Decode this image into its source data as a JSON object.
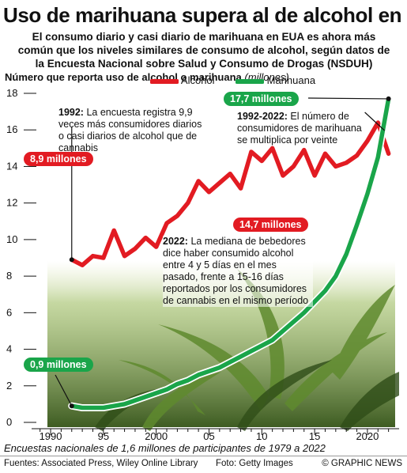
{
  "title": "Uso de marihuana supera al de alcohol en EUA",
  "subtitle": "El consumo diario y casi diario de marihuana en EUA es ahora más común que los niveles similares de consumo de alcohol, según datos de la Encuesta Nacional sobre Salud y Consumo de Drogas (NSDUH)",
  "measure_label": "Número  que reporta uso de alcohol o marihuana",
  "measure_unit": "(millones)",
  "legend": {
    "alcohol": "Alcohol",
    "cannabis": "Marihuana"
  },
  "colors": {
    "alcohol": "#e21b22",
    "cannabis": "#1aa54a",
    "photo_dark": "#3e5c22",
    "photo_light": "#9fbe63"
  },
  "callouts": {
    "alcohol_1992": "8,9 millones",
    "cannabis_1992": "0,9 millones",
    "cannabis_2022": "17,7 millones",
    "alcohol_2022": "14,7 millones"
  },
  "notes": {
    "n1992_year": "1992:",
    "n1992_text": " La encuesta registra 9,9 veces más consumidores diarios o casi diarios de alcohol que de cannabis",
    "n19922022_year": "1992-2022:",
    "n19922022_text": " El número de consumidores de marihuana se multiplica por veinte",
    "n2022_year": "2022:",
    "n2022_text": " La mediana de bebedores dice haber consumido alcohol entre 4 y 5 días en el mes pasado, frente a 15-16 días reportados por los consumidores de cannabis en el mismo período"
  },
  "chart_data": {
    "type": "line",
    "x": [
      1992,
      1993,
      1994,
      1995,
      1996,
      1997,
      1998,
      1999,
      2000,
      2001,
      2002,
      2003,
      2004,
      2005,
      2006,
      2007,
      2008,
      2009,
      2010,
      2011,
      2012,
      2013,
      2014,
      2015,
      2016,
      2017,
      2018,
      2019,
      2020,
      2021,
      2022
    ],
    "series": [
      {
        "name": "Alcohol",
        "values": [
          8.9,
          8.6,
          9.1,
          9.0,
          10.5,
          9.1,
          9.5,
          10.1,
          9.6,
          10.9,
          11.3,
          12.0,
          13.2,
          12.6,
          13.1,
          13.6,
          12.8,
          14.8,
          14.3,
          15.0,
          13.5,
          14.0,
          14.9,
          13.5,
          14.7,
          14.0,
          14.2,
          14.6,
          15.4,
          16.4,
          14.7
        ]
      },
      {
        "name": "Marihuana",
        "values": [
          0.9,
          0.8,
          0.8,
          0.8,
          0.9,
          1.0,
          1.2,
          1.4,
          1.6,
          1.8,
          2.1,
          2.3,
          2.6,
          2.8,
          3.0,
          3.3,
          3.6,
          3.9,
          4.2,
          4.5,
          5.0,
          5.5,
          6.0,
          6.6,
          7.2,
          8.0,
          9.2,
          10.8,
          12.5,
          14.5,
          17.7
        ]
      }
    ],
    "xticks": [
      "1990",
      "95",
      "2000",
      "05",
      "10",
      "15",
      "2020"
    ],
    "yticks": [
      "0",
      "2",
      "4",
      "6",
      "8",
      "10",
      "12",
      "14",
      "16",
      "18"
    ],
    "ylim": [
      0,
      18
    ],
    "xlim": [
      1988.5,
      2023
    ]
  },
  "footer": {
    "survey": "Encuestas nacionales de 1,6 millones de participantes de 1979 a 2022",
    "sources": "Fuentes:  Associated Press, Wiley Online Library",
    "photo": "Foto: Getty Images",
    "credit": "© GRAPHIC NEWS"
  }
}
